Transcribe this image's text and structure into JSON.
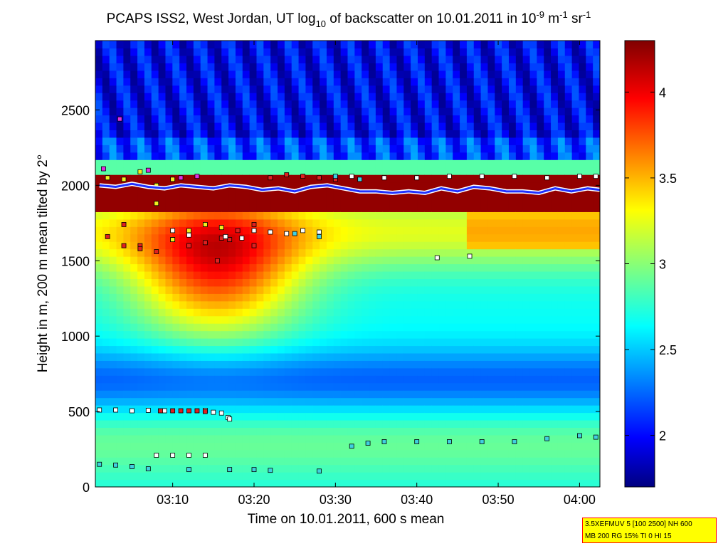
{
  "chart_data": {
    "type": "heatmap",
    "title": {
      "prefix": "PCAPS ISS2, West Jordan, UT log",
      "log_base": "10",
      "middle": " of backscatter on 10.01.2011 in 10",
      "exp1": "-9",
      "unit1": " m",
      "exp2": "-1",
      "unit2": " sr",
      "exp3": "-1"
    },
    "xlabel": "Time on 10.01.2011, 600 s mean",
    "ylabel": "Height in m, 200 m mean tilted by 2°",
    "x_range_minutes": [
      0.5,
      62.5
    ],
    "x_ticks": [
      {
        "value": 10,
        "label": "03:10"
      },
      {
        "value": 20,
        "label": "03:20"
      },
      {
        "value": 30,
        "label": "03:30"
      },
      {
        "value": 40,
        "label": "03:40"
      },
      {
        "value": 50,
        "label": "03:50"
      },
      {
        "value": 60,
        "label": "04:00"
      }
    ],
    "y_range": [
      0,
      2960
    ],
    "y_ticks": [
      0,
      500,
      1000,
      1500,
      2000,
      2500
    ],
    "colorbar": {
      "range": [
        1.7,
        4.3
      ],
      "ticks": [
        2,
        2.5,
        3,
        3.5,
        4
      ],
      "tick_labels": [
        "2",
        "2.5",
        "3",
        "3.5",
        "4"
      ],
      "colormap": "jet"
    },
    "field_features": {
      "aerosol_top_m": 2000,
      "dense_layer_m": [
        1850,
        2050
      ],
      "plume": {
        "t_center": 15.5,
        "t_halfwidth": 12,
        "h_center_m": 1450,
        "peak_log10": 4.1
      },
      "upper_air_log10": 2.0
    },
    "series": [
      {
        "name": "layer-top-red",
        "marker": "square",
        "color": "#e02020",
        "points": [
          [
            2,
            1660
          ],
          [
            4,
            1740
          ],
          [
            6,
            1600
          ],
          [
            8,
            1560
          ],
          [
            10,
            1640
          ],
          [
            12,
            1600
          ],
          [
            14,
            1620
          ],
          [
            16,
            1650
          ],
          [
            18,
            1700
          ],
          [
            20,
            1740
          ],
          [
            22,
            2050
          ],
          [
            24,
            2070
          ],
          [
            26,
            2060
          ],
          [
            28,
            2050
          ],
          [
            30,
            2040
          ],
          [
            4,
            1600
          ],
          [
            6,
            1580
          ],
          [
            20,
            1600
          ],
          [
            15.5,
            1500
          ],
          [
            17,
            1640
          ]
        ]
      },
      {
        "name": "layer-top-white",
        "marker": "square",
        "color": "#ffffff",
        "points": [
          [
            20,
            1700
          ],
          [
            22,
            1690
          ],
          [
            24,
            1680
          ],
          [
            26,
            1700
          ],
          [
            28,
            1690
          ],
          [
            32,
            2060
          ],
          [
            36,
            2050
          ],
          [
            40,
            2050
          ],
          [
            44,
            2060
          ],
          [
            48,
            2060
          ],
          [
            52,
            2060
          ],
          [
            56,
            2050
          ],
          [
            60,
            2060
          ],
          [
            62,
            2060
          ],
          [
            42.5,
            1520
          ],
          [
            46.5,
            1530
          ],
          [
            16.5,
            1660
          ],
          [
            18.5,
            1650
          ],
          [
            10,
            1700
          ],
          [
            12,
            1670
          ]
        ]
      },
      {
        "name": "layer-top-yellow",
        "marker": "square",
        "color": "#f0f020",
        "points": [
          [
            2,
            2050
          ],
          [
            4,
            2040
          ],
          [
            6,
            2090
          ],
          [
            8,
            2000
          ],
          [
            10,
            1640
          ],
          [
            12,
            1700
          ],
          [
            14,
            1740
          ],
          [
            16,
            1720
          ],
          [
            8,
            1880
          ],
          [
            10,
            2040
          ]
        ]
      },
      {
        "name": "layer-top-magenta",
        "marker": "square",
        "color": "#e030e0",
        "points": [
          [
            1.5,
            2110
          ],
          [
            3.5,
            2440
          ],
          [
            7,
            2100
          ],
          [
            11,
            2050
          ],
          [
            13,
            2060
          ]
        ]
      },
      {
        "name": "layer-top-cyan",
        "marker": "square",
        "color": "#40d0e0",
        "points": [
          [
            25,
            1680
          ],
          [
            28,
            1660
          ],
          [
            30,
            2060
          ],
          [
            33,
            2040
          ]
        ]
      },
      {
        "name": "boundary-layer-white",
        "marker": "square",
        "color": "#ffffff",
        "points": [
          [
            1,
            510
          ],
          [
            3,
            510
          ],
          [
            5,
            505
          ],
          [
            7,
            508
          ],
          [
            9,
            505
          ],
          [
            14,
            508
          ],
          [
            15,
            495
          ],
          [
            16,
            490
          ],
          [
            16.8,
            460
          ],
          [
            17,
            450
          ]
        ]
      },
      {
        "name": "boundary-layer-red",
        "marker": "square",
        "color": "#e02020",
        "points": [
          [
            8.5,
            505
          ],
          [
            10,
            505
          ],
          [
            11,
            505
          ],
          [
            12,
            505
          ],
          [
            13,
            505
          ],
          [
            14,
            500
          ]
        ]
      },
      {
        "name": "low-layer-cyan",
        "marker": "square",
        "color": "#40d0e0",
        "points": [
          [
            1,
            150
          ],
          [
            3,
            145
          ],
          [
            5,
            135
          ],
          [
            7,
            120
          ],
          [
            12,
            115
          ],
          [
            17,
            115
          ],
          [
            20,
            115
          ],
          [
            22,
            110
          ],
          [
            28,
            105
          ],
          [
            32,
            270
          ],
          [
            34,
            290
          ],
          [
            36,
            300
          ],
          [
            40,
            300
          ],
          [
            44,
            300
          ],
          [
            48,
            300
          ],
          [
            52,
            300
          ],
          [
            56,
            320
          ],
          [
            60,
            340
          ],
          [
            62,
            330
          ]
        ]
      },
      {
        "name": "low-layer-white",
        "marker": "square",
        "color": "#ffffff",
        "points": [
          [
            8,
            210
          ],
          [
            10,
            210
          ],
          [
            12,
            210
          ],
          [
            14,
            210
          ]
        ]
      },
      {
        "name": "mixing-line-blue",
        "marker": "line",
        "color": "#2030ff",
        "points": [
          [
            1,
            2000
          ],
          [
            3,
            1990
          ],
          [
            5,
            2010
          ],
          [
            7,
            1990
          ],
          [
            9,
            1980
          ],
          [
            11,
            2000
          ],
          [
            13,
            1990
          ],
          [
            15,
            1980
          ],
          [
            17,
            2000
          ],
          [
            19,
            1990
          ],
          [
            21,
            1970
          ],
          [
            23,
            1980
          ],
          [
            25,
            1960
          ],
          [
            27,
            1990
          ],
          [
            29,
            2000
          ],
          [
            31,
            1980
          ],
          [
            33,
            1960
          ],
          [
            35,
            1960
          ],
          [
            37,
            1950
          ],
          [
            39,
            1960
          ],
          [
            41,
            1950
          ],
          [
            43,
            1980
          ],
          [
            45,
            1960
          ],
          [
            47,
            1990
          ],
          [
            49,
            1980
          ],
          [
            51,
            1960
          ],
          [
            53,
            1960
          ],
          [
            55,
            1950
          ],
          [
            57,
            1980
          ],
          [
            59,
            1960
          ],
          [
            61,
            1980
          ],
          [
            62.5,
            1970
          ]
        ]
      }
    ]
  },
  "infobox": {
    "line1": "3.5XEFMUV 5 [100 2500] NH 600",
    "line2": "MB 200 RG 15% TI 0 HI 15"
  }
}
